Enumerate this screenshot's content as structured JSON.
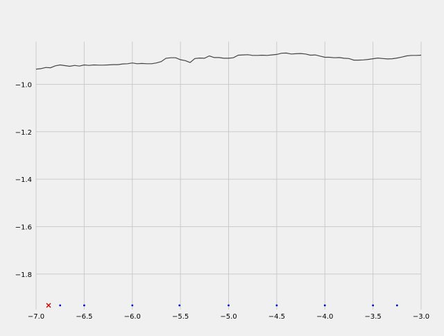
{
  "chart_data": {
    "type": "line",
    "title": "",
    "xlabel": "",
    "ylabel": "",
    "xlim": [
      -7.0,
      -3.0
    ],
    "ylim": [
      -1.95,
      -0.82
    ],
    "grid": true,
    "x_ticks": [
      -7.0,
      -6.5,
      -6.0,
      -5.5,
      -5.0,
      -4.5,
      -4.0,
      -3.5,
      -3.0
    ],
    "x_tick_labels": [
      "−7.0",
      "−6.5",
      "−6.0",
      "−5.5",
      "−5.0",
      "−4.5",
      "−4.0",
      "−3.5",
      "−3.0"
    ],
    "y_ticks": [
      -1.0,
      -1.2,
      -1.4,
      -1.6,
      -1.8
    ],
    "y_tick_labels": [
      "−1.0",
      "−1.2",
      "−1.4",
      "−1.6",
      "−1.8"
    ],
    "series": [
      {
        "kind": "line",
        "color": "#444444",
        "points": [
          [
            -7.0,
            -0.936
          ],
          [
            -6.95,
            -0.934
          ],
          [
            -6.9,
            -0.929
          ],
          [
            -6.85,
            -0.93
          ],
          [
            -6.8,
            -0.922
          ],
          [
            -6.75,
            -0.918
          ],
          [
            -6.7,
            -0.921
          ],
          [
            -6.65,
            -0.924
          ],
          [
            -6.6,
            -0.92
          ],
          [
            -6.55,
            -0.923
          ],
          [
            -6.5,
            -0.918
          ],
          [
            -6.45,
            -0.92
          ],
          [
            -6.4,
            -0.918
          ],
          [
            -6.35,
            -0.919
          ],
          [
            -6.3,
            -0.919
          ],
          [
            -6.25,
            -0.918
          ],
          [
            -6.2,
            -0.917
          ],
          [
            -6.15,
            -0.917
          ],
          [
            -6.1,
            -0.914
          ],
          [
            -6.05,
            -0.913
          ],
          [
            -6.0,
            -0.91
          ],
          [
            -5.95,
            -0.913
          ],
          [
            -5.9,
            -0.912
          ],
          [
            -5.85,
            -0.913
          ],
          [
            -5.8,
            -0.913
          ],
          [
            -5.75,
            -0.91
          ],
          [
            -5.7,
            -0.904
          ],
          [
            -5.65,
            -0.89
          ],
          [
            -5.6,
            -0.888
          ],
          [
            -5.55,
            -0.888
          ],
          [
            -5.5,
            -0.896
          ],
          [
            -5.45,
            -0.9
          ],
          [
            -5.4,
            -0.908
          ],
          [
            -5.35,
            -0.891
          ],
          [
            -5.3,
            -0.889
          ],
          [
            -5.25,
            -0.89
          ],
          [
            -5.2,
            -0.88
          ],
          [
            -5.15,
            -0.887
          ],
          [
            -5.1,
            -0.887
          ],
          [
            -5.05,
            -0.89
          ],
          [
            -5.0,
            -0.89
          ],
          [
            -4.95,
            -0.888
          ],
          [
            -4.9,
            -0.877
          ],
          [
            -4.85,
            -0.876
          ],
          [
            -4.8,
            -0.875
          ],
          [
            -4.75,
            -0.878
          ],
          [
            -4.7,
            -0.878
          ],
          [
            -4.65,
            -0.877
          ],
          [
            -4.6,
            -0.878
          ],
          [
            -4.55,
            -0.876
          ],
          [
            -4.5,
            -0.874
          ],
          [
            -4.45,
            -0.869
          ],
          [
            -4.4,
            -0.868
          ],
          [
            -4.35,
            -0.872
          ],
          [
            -4.3,
            -0.871
          ],
          [
            -4.25,
            -0.87
          ],
          [
            -4.2,
            -0.872
          ],
          [
            -4.15,
            -0.877
          ],
          [
            -4.1,
            -0.876
          ],
          [
            -4.05,
            -0.881
          ],
          [
            -4.0,
            -0.886
          ],
          [
            -3.95,
            -0.886
          ],
          [
            -3.9,
            -0.888
          ],
          [
            -3.85,
            -0.887
          ],
          [
            -3.8,
            -0.89
          ],
          [
            -3.75,
            -0.891
          ],
          [
            -3.7,
            -0.898
          ],
          [
            -3.65,
            -0.898
          ],
          [
            -3.6,
            -0.897
          ],
          [
            -3.55,
            -0.895
          ],
          [
            -3.5,
            -0.892
          ],
          [
            -3.45,
            -0.889
          ],
          [
            -3.4,
            -0.891
          ],
          [
            -3.35,
            -0.893
          ],
          [
            -3.3,
            -0.892
          ],
          [
            -3.25,
            -0.889
          ],
          [
            -3.2,
            -0.885
          ],
          [
            -3.15,
            -0.88
          ],
          [
            -3.1,
            -0.878
          ],
          [
            -3.05,
            -0.878
          ],
          [
            -3.0,
            -0.877
          ]
        ]
      },
      {
        "kind": "scatter",
        "marker": "dot",
        "color": "#0000cc",
        "points": [
          [
            -6.75,
            -1.932
          ],
          [
            -6.5,
            -1.932
          ],
          [
            -6.0,
            -1.932
          ],
          [
            -5.51,
            -1.932
          ],
          [
            -5.0,
            -1.932
          ],
          [
            -4.5,
            -1.932
          ],
          [
            -4.0,
            -1.932
          ],
          [
            -3.5,
            -1.932
          ],
          [
            -3.25,
            -1.932
          ]
        ]
      },
      {
        "kind": "scatter",
        "marker": "x",
        "color": "#cc0000",
        "points": [
          [
            -6.87,
            -1.932
          ]
        ]
      }
    ],
    "colors": {
      "grid": "#cbcbcb",
      "background": "#f0f0f0",
      "text": "#000000"
    }
  }
}
